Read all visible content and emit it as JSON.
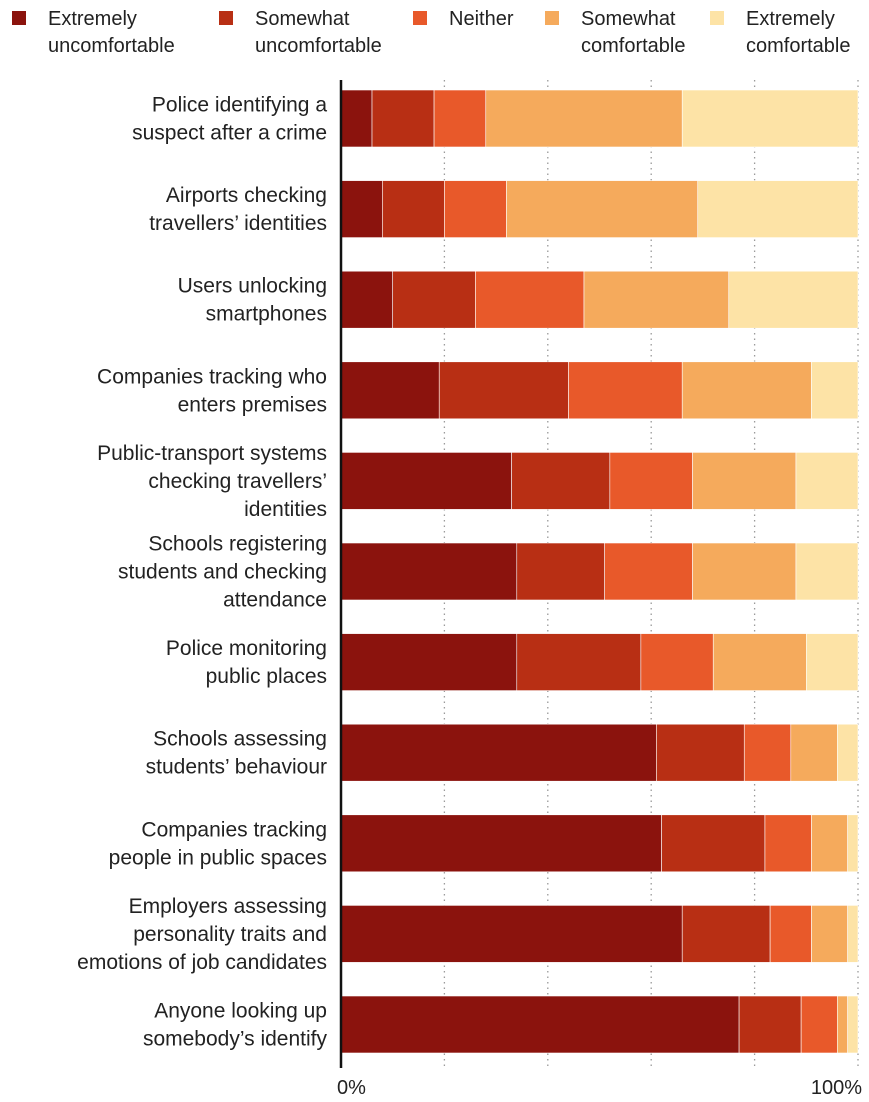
{
  "chart_data": {
    "type": "bar",
    "orientation": "horizontal",
    "stacked": true,
    "normalized": true,
    "xlim": [
      0,
      100
    ],
    "x_ticks": [
      "0%",
      "100%"
    ],
    "grid": "vertical dotted",
    "legend_position": "top",
    "colors": [
      "#8b130d",
      "#b82f14",
      "#e8592a",
      "#f5aa5c",
      "#fde3a6"
    ],
    "categories": [
      "Police identifying a suspect after a crime",
      "Airports checking travellers’ identities",
      "Users unlocking smartphones",
      "Companies tracking who enters premises",
      "Public-transport systems checking travellers’ identities",
      "Schools registering students and checking attendance",
      "Police monitoring public places",
      "Schools assessing students’ behaviour",
      "Companies tracking people in public spaces",
      "Employers assessing personality traits and emotions of job candidates",
      "Anyone looking up somebody’s identify"
    ],
    "category_lines": [
      [
        "Police identifying a",
        "suspect after a crime"
      ],
      [
        "Airports checking",
        "travellers’ identities"
      ],
      [
        "Users unlocking",
        "smartphones"
      ],
      [
        "Companies tracking who",
        "enters premises"
      ],
      [
        "Public-transport systems",
        "checking travellers’",
        "identities"
      ],
      [
        "Schools registering",
        "students and checking",
        "attendance"
      ],
      [
        "Police monitoring",
        "public places"
      ],
      [
        "Schools assessing",
        "students’ behaviour"
      ],
      [
        "Companies tracking",
        "people in public spaces"
      ],
      [
        "Employers assessing",
        "personality traits and",
        "emotions of job candidates"
      ],
      [
        "Anyone looking up",
        "somebody’s identify"
      ]
    ],
    "series": [
      {
        "name": "Extremely uncomfortable",
        "legend_lines": [
          "Extremely",
          "uncomfortable"
        ],
        "values": [
          6,
          8,
          10,
          19,
          33,
          34,
          34,
          61,
          62,
          66,
          77
        ]
      },
      {
        "name": "Somewhat uncomfortable",
        "legend_lines": [
          "Somewhat",
          "uncomfortable"
        ],
        "values": [
          12,
          12,
          16,
          25,
          19,
          17,
          24,
          17,
          20,
          17,
          12
        ]
      },
      {
        "name": "Neither",
        "legend_lines": [
          "Neither"
        ],
        "values": [
          10,
          12,
          21,
          22,
          16,
          17,
          14,
          9,
          9,
          8,
          7
        ]
      },
      {
        "name": "Somewhat comfortable",
        "legend_lines": [
          "Somewhat",
          "comfortable"
        ],
        "values": [
          38,
          37,
          28,
          25,
          20,
          20,
          18,
          9,
          7,
          7,
          2
        ]
      },
      {
        "name": "Extremely comfortable",
        "legend_lines": [
          "Extremely",
          "comfortable"
        ],
        "values": [
          34,
          31,
          25,
          9,
          12,
          12,
          10,
          4,
          2,
          2,
          2
        ]
      }
    ]
  }
}
